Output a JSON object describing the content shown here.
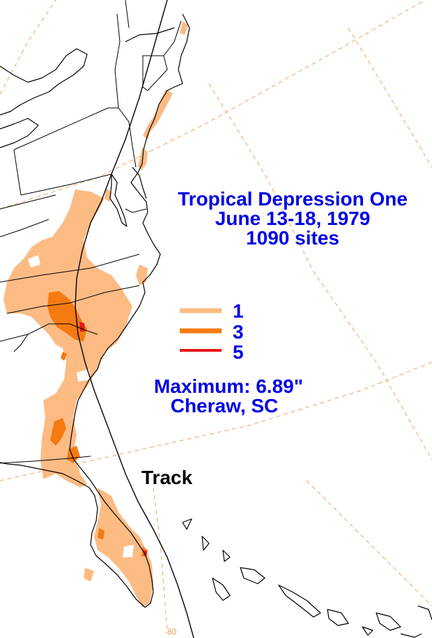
{
  "title": {
    "line1": "Tropical Depression One",
    "line2": "June 13-18, 1979",
    "line3": "1090 sites"
  },
  "legend": [
    {
      "label": "1",
      "color": "#fdbb84"
    },
    {
      "label": "3",
      "color": "#f57a12"
    },
    {
      "label": "5",
      "color": "#e8161a"
    }
  ],
  "maximum": {
    "line1": "Maximum:  6.89\"",
    "line2": "Cheraw, SC"
  },
  "track_label": "Track",
  "longitude_label": "-80",
  "colors": {
    "text": "#0000e6",
    "track_text": "#000000",
    "graticule": "#f0a060"
  }
}
